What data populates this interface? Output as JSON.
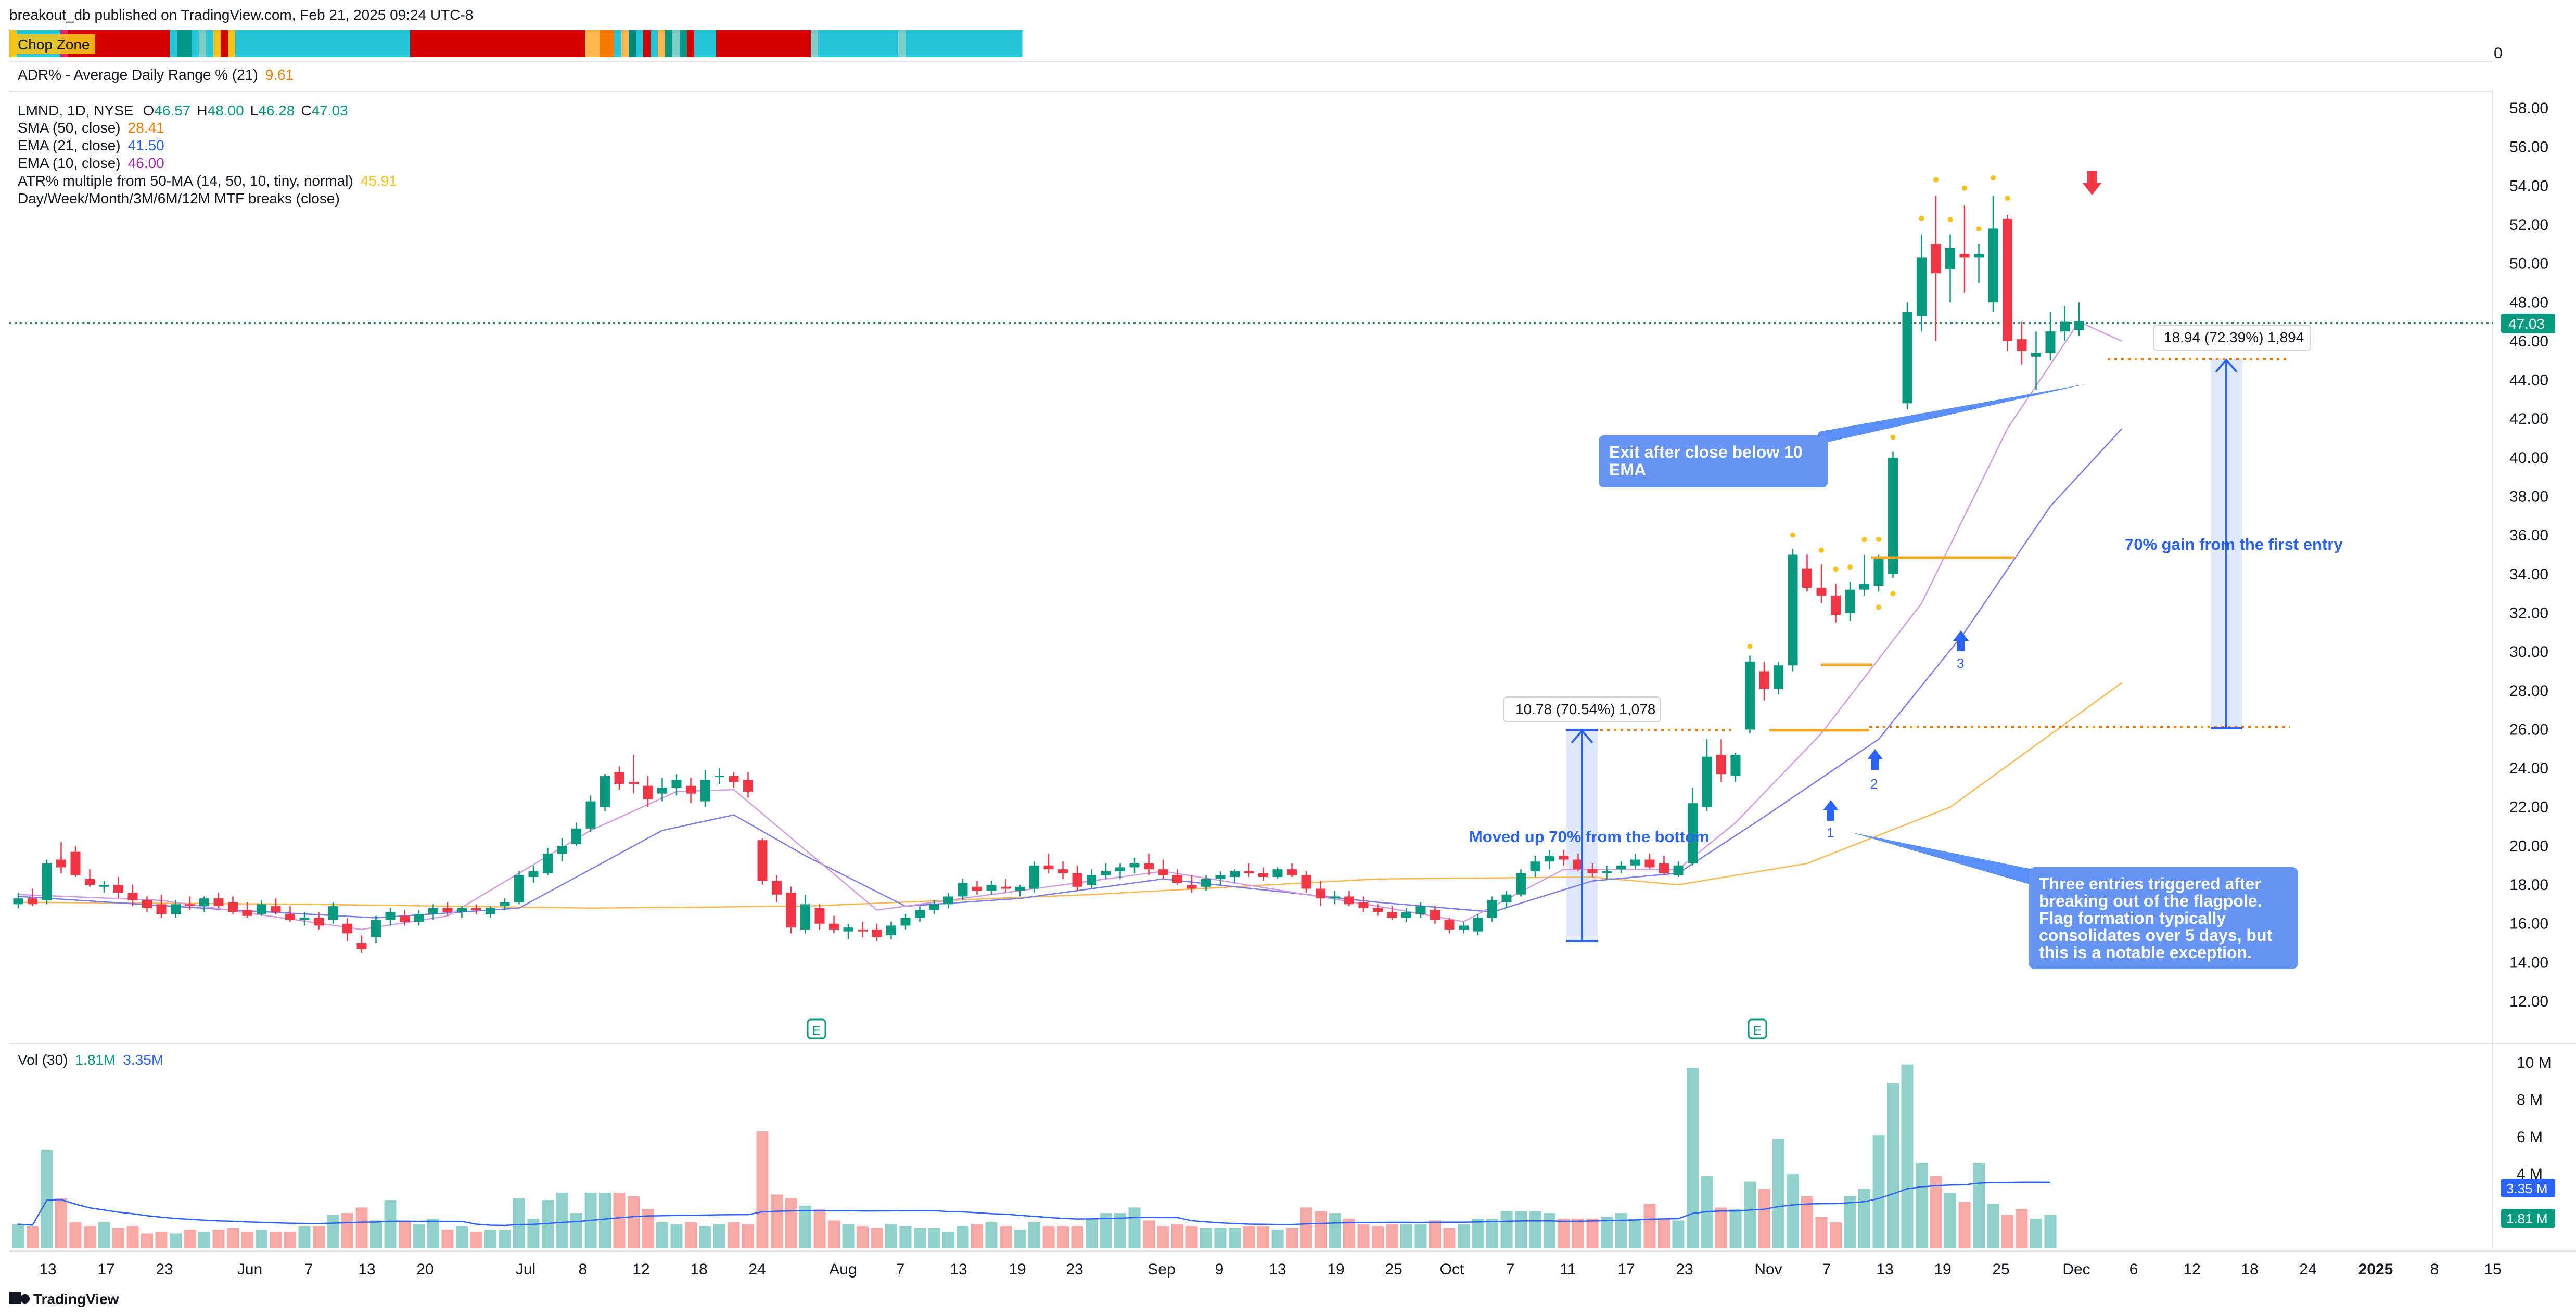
{
  "header": {
    "published": "breakout_db published on TradingView.com, Feb 21, 2025 09:24 UTC-8",
    "footer_brand": "TradingView"
  },
  "chop_zone": {
    "label": "Chop Zone",
    "zero_label": "0",
    "colors": [
      "#f7c31a",
      "#26c6da",
      "#26c6da",
      "#26c6da",
      "#26c6da",
      "#26c6da",
      "#26c6da",
      "#e91e63",
      "#d50000",
      "#d50000",
      "#d50000",
      "#d50000",
      "#d50000",
      "#d50000",
      "#d50000",
      "#d50000",
      "#d50000",
      "#d50000",
      "#d50000",
      "#d50000",
      "#d50000",
      "#d50000",
      "#26c6da",
      "#009688",
      "#009688",
      "#26c6da",
      "#80cbc4",
      "#26c6da",
      "#f7c31a",
      "#d50000",
      "#f7c31a",
      "#26c6da",
      "#26c6da",
      "#26c6da",
      "#26c6da",
      "#26c6da",
      "#26c6da",
      "#26c6da",
      "#26c6da",
      "#26c6da",
      "#26c6da",
      "#26c6da",
      "#26c6da",
      "#26c6da",
      "#26c6da",
      "#26c6da",
      "#26c6da",
      "#26c6da",
      "#26c6da",
      "#26c6da",
      "#26c6da",
      "#26c6da",
      "#26c6da",
      "#26c6da",
      "#26c6da",
      "#d50000",
      "#d50000",
      "#d50000",
      "#d50000",
      "#d50000",
      "#d50000",
      "#d50000",
      "#d50000",
      "#d50000",
      "#d50000",
      "#d50000",
      "#d50000",
      "#d50000",
      "#d50000",
      "#d50000",
      "#d50000",
      "#d50000",
      "#d50000",
      "#d50000",
      "#d50000",
      "#d50000",
      "#d50000",
      "#d50000",
      "#d50000",
      "#ffb74d",
      "#ffb74d",
      "#f57c00",
      "#f57c00",
      "#26c6da",
      "#ffb74d",
      "#00897b",
      "#26c6da",
      "#d50000",
      "#26c6da",
      "#ffb74d",
      "#009688",
      "#80cbc4",
      "#009688",
      "#d50000",
      "#26c6da",
      "#26c6da",
      "#26c6da",
      "#d50000",
      "#d50000",
      "#d50000",
      "#d50000",
      "#d50000",
      "#d50000",
      "#d50000",
      "#d50000",
      "#d50000",
      "#d50000",
      "#d50000",
      "#d50000",
      "#d50000",
      "#80cbc4",
      "#26c6da",
      "#26c6da",
      "#26c6da",
      "#26c6da",
      "#26c6da",
      "#26c6da",
      "#26c6da",
      "#26c6da",
      "#26c6da",
      "#26c6da",
      "#26c6da",
      "#80cbc4",
      "#26c6da",
      "#26c6da",
      "#26c6da",
      "#26c6da",
      "#26c6da",
      "#26c6da",
      "#26c6da",
      "#26c6da",
      "#26c6da",
      "#26c6da",
      "#26c6da",
      "#26c6da",
      "#26c6da",
      "#26c6da",
      "#26c6da",
      "#26c6da"
    ]
  },
  "adr": {
    "label": "ADR% - Average Daily Range % (21)",
    "value": "9.61"
  },
  "legend": {
    "symbol": "LMND, 1D, NYSE",
    "o_label": "O",
    "o_value": "46.57",
    "h_label": "H",
    "h_value": "48.00",
    "l_label": "L",
    "l_value": "46.28",
    "c_label": "C",
    "c_value": "47.03",
    "sma50": "SMA (50, close)",
    "sma50_value": "28.41",
    "ema21": "EMA (21, close)",
    "ema21_value": "41.50",
    "ema10": "EMA (10, close)",
    "ema10_value": "46.00",
    "atr": "ATR% multiple from 50-MA (14, 50, 10, tiny, normal)",
    "atr_value": "45.91",
    "mtf": "Day/Week/Month/3M/6M/12M MTF breaks (close)"
  },
  "volume_legend": {
    "label": "Vol (30)",
    "v1": "1.81M",
    "v2": "3.35M"
  },
  "colors": {
    "up": "#089981",
    "down": "#f23645",
    "vol_up": "#92d2cc",
    "vol_down": "#f7a9a7",
    "sma50": "#ffb74d",
    "ema21": "#5b5bd6",
    "ema10": "#c77ddb",
    "annotation": "#5b8ff9"
  },
  "annotations": {
    "measure1": "10.78 (70.54%) 1,078",
    "measure2": "18.94 (72.39%) 1,894",
    "moved_up": "Moved up 70% from the bottom",
    "gain": "70% gain from the first entry",
    "exit_line1": "Exit after close below 10",
    "exit_line2": "EMA",
    "three_entries": [
      "Three entries triggered after",
      "breaking out of the flagpole.",
      "Flag formation typically",
      "consolidates over 5 days, but",
      "this is a notable exception."
    ],
    "entry_labels": [
      "1",
      "2",
      "3"
    ],
    "earnings_marker": "E",
    "last_price": "47.03",
    "vol_last1": "3.35 M",
    "vol_last2": "1.81 M"
  },
  "chart_data": {
    "type": "candlestick",
    "symbol": "LMND",
    "price_axis": {
      "ticks": [
        "58.00",
        "56.00",
        "54.00",
        "52.00",
        "50.00",
        "48.00",
        "46.00",
        "44.00",
        "42.00",
        "40.00",
        "38.00",
        "36.00",
        "34.00",
        "32.00",
        "30.00",
        "28.00",
        "26.00",
        "24.00",
        "22.00",
        "20.00",
        "18.00",
        "16.00",
        "14.00",
        "12.00"
      ],
      "ylim": [
        10.5,
        59
      ]
    },
    "volume_axis": {
      "ticks": [
        "10 M",
        "8 M",
        "6 M",
        "4 M"
      ],
      "ylim": [
        0,
        11
      ]
    },
    "x_ticks": [
      "13",
      "17",
      "23",
      "Jun",
      "7",
      "13",
      "20",
      "Jul",
      "8",
      "12",
      "18",
      "24",
      "Aug",
      "7",
      "13",
      "19",
      "23",
      "Sep",
      "9",
      "13",
      "19",
      "25",
      "Oct",
      "7",
      "11",
      "17",
      "23",
      "Nov",
      "7",
      "13",
      "19",
      "25",
      "Dec",
      "6",
      "12",
      "18",
      "24",
      "2025",
      "8",
      "15"
    ],
    "candles": [
      [
        17.0,
        17.6,
        16.8,
        17.3
      ],
      [
        17.3,
        17.8,
        16.9,
        17.0
      ],
      [
        17.2,
        19.3,
        17.0,
        19.1
      ],
      [
        19.3,
        20.2,
        18.6,
        18.9
      ],
      [
        19.7,
        20.0,
        18.4,
        18.5
      ],
      [
        18.3,
        18.8,
        17.9,
        18.0
      ],
      [
        17.9,
        18.2,
        17.6,
        18.0
      ],
      [
        18.0,
        18.4,
        17.3,
        17.6
      ],
      [
        17.6,
        18.0,
        16.9,
        17.2
      ],
      [
        17.2,
        17.4,
        16.6,
        16.8
      ],
      [
        17.0,
        17.5,
        16.3,
        16.5
      ],
      [
        16.5,
        17.2,
        16.3,
        17.0
      ],
      [
        17.0,
        17.4,
        16.7,
        16.9
      ],
      [
        16.9,
        17.4,
        16.6,
        17.3
      ],
      [
        17.3,
        17.6,
        16.8,
        16.9
      ],
      [
        17.1,
        17.4,
        16.5,
        16.6
      ],
      [
        16.7,
        17.1,
        16.3,
        16.4
      ],
      [
        16.5,
        17.2,
        16.4,
        17.0
      ],
      [
        16.9,
        17.3,
        16.5,
        16.6
      ],
      [
        16.5,
        16.9,
        16.1,
        16.2
      ],
      [
        16.2,
        16.6,
        15.9,
        16.3
      ],
      [
        16.3,
        16.6,
        15.7,
        15.9
      ],
      [
        16.2,
        17.1,
        16.0,
        16.9
      ],
      [
        16.0,
        16.3,
        15.1,
        15.5
      ],
      [
        15.0,
        15.4,
        14.5,
        14.7
      ],
      [
        15.3,
        16.4,
        15.0,
        16.2
      ],
      [
        16.2,
        16.8,
        15.9,
        16.6
      ],
      [
        16.4,
        16.7,
        15.9,
        16.1
      ],
      [
        16.1,
        16.7,
        15.9,
        16.5
      ],
      [
        16.5,
        17.0,
        16.2,
        16.8
      ],
      [
        16.8,
        17.1,
        16.4,
        16.6
      ],
      [
        16.6,
        16.9,
        16.3,
        16.8
      ],
      [
        16.8,
        17.0,
        16.5,
        16.7
      ],
      [
        16.5,
        16.9,
        16.3,
        16.8
      ],
      [
        16.9,
        17.3,
        16.7,
        17.1
      ],
      [
        17.1,
        18.7,
        17.0,
        18.5
      ],
      [
        18.4,
        19.0,
        18.1,
        18.7
      ],
      [
        18.6,
        19.9,
        18.5,
        19.6
      ],
      [
        19.6,
        20.4,
        19.2,
        20.0
      ],
      [
        20.1,
        21.2,
        20.0,
        20.9
      ],
      [
        20.9,
        22.6,
        20.7,
        22.3
      ],
      [
        22.0,
        23.7,
        21.8,
        23.6
      ],
      [
        23.8,
        24.1,
        22.9,
        23.2
      ],
      [
        23.3,
        24.7,
        22.7,
        23.2
      ],
      [
        23.1,
        23.6,
        22.0,
        22.4
      ],
      [
        22.7,
        23.5,
        22.3,
        23.0
      ],
      [
        23.0,
        23.7,
        22.6,
        23.4
      ],
      [
        23.1,
        23.5,
        22.2,
        22.7
      ],
      [
        22.3,
        23.9,
        22.0,
        23.4
      ],
      [
        23.6,
        24.0,
        23.2,
        23.6
      ],
      [
        23.6,
        23.8,
        23.0,
        23.3
      ],
      [
        23.4,
        23.8,
        22.5,
        22.8
      ],
      [
        20.3,
        20.4,
        18.0,
        18.2
      ],
      [
        18.2,
        18.5,
        17.1,
        17.5
      ],
      [
        17.6,
        17.9,
        15.5,
        15.8
      ],
      [
        15.7,
        17.5,
        15.5,
        17.0
      ],
      [
        16.8,
        17.0,
        15.7,
        16.0
      ],
      [
        16.0,
        16.4,
        15.5,
        15.7
      ],
      [
        15.6,
        16.0,
        15.2,
        15.8
      ],
      [
        15.7,
        16.1,
        15.3,
        15.6
      ],
      [
        15.7,
        16.0,
        15.1,
        15.3
      ],
      [
        15.4,
        16.1,
        15.2,
        15.9
      ],
      [
        15.9,
        16.5,
        15.7,
        16.3
      ],
      [
        16.3,
        16.9,
        16.1,
        16.7
      ],
      [
        16.7,
        17.2,
        16.5,
        17.0
      ],
      [
        17.0,
        17.6,
        16.8,
        17.4
      ],
      [
        17.4,
        18.3,
        17.2,
        18.1
      ],
      [
        17.9,
        18.2,
        17.5,
        17.7
      ],
      [
        17.7,
        18.2,
        17.5,
        18.0
      ],
      [
        17.9,
        18.3,
        17.6,
        17.8
      ],
      [
        17.7,
        18.0,
        17.4,
        17.9
      ],
      [
        17.8,
        19.2,
        17.6,
        19.0
      ],
      [
        19.0,
        19.6,
        18.6,
        18.8
      ],
      [
        18.8,
        19.2,
        18.3,
        18.6
      ],
      [
        18.6,
        19.0,
        17.7,
        17.9
      ],
      [
        18.0,
        18.8,
        17.8,
        18.5
      ],
      [
        18.5,
        19.1,
        18.3,
        18.7
      ],
      [
        18.7,
        19.1,
        18.3,
        18.9
      ],
      [
        18.9,
        19.4,
        18.6,
        19.1
      ],
      [
        19.1,
        19.6,
        18.5,
        18.8
      ],
      [
        18.8,
        19.3,
        18.3,
        18.5
      ],
      [
        18.5,
        18.8,
        18.0,
        18.1
      ],
      [
        18.0,
        18.5,
        17.6,
        17.8
      ],
      [
        17.9,
        18.5,
        17.7,
        18.3
      ],
      [
        18.3,
        18.7,
        18.0,
        18.5
      ],
      [
        18.4,
        18.8,
        18.1,
        18.7
      ],
      [
        18.7,
        19.1,
        18.4,
        18.6
      ],
      [
        18.6,
        18.9,
        18.2,
        18.4
      ],
      [
        18.4,
        18.9,
        18.3,
        18.8
      ],
      [
        18.8,
        19.1,
        18.4,
        18.5
      ],
      [
        18.5,
        18.7,
        17.6,
        17.8
      ],
      [
        17.8,
        18.2,
        16.9,
        17.3
      ],
      [
        17.3,
        17.7,
        17.0,
        17.4
      ],
      [
        17.4,
        17.7,
        16.9,
        17.0
      ],
      [
        17.1,
        17.4,
        16.6,
        16.8
      ],
      [
        16.8,
        17.0,
        16.4,
        16.6
      ],
      [
        16.6,
        16.9,
        16.2,
        16.3
      ],
      [
        16.3,
        16.8,
        16.1,
        16.6
      ],
      [
        16.5,
        17.1,
        16.3,
        16.9
      ],
      [
        16.7,
        16.9,
        16.0,
        16.2
      ],
      [
        16.2,
        16.3,
        15.5,
        15.7
      ],
      [
        15.7,
        16.1,
        15.5,
        15.9
      ],
      [
        15.6,
        16.5,
        15.4,
        16.3
      ],
      [
        16.3,
        17.4,
        16.1,
        17.2
      ],
      [
        17.1,
        17.7,
        16.8,
        17.5
      ],
      [
        17.5,
        18.8,
        17.4,
        18.6
      ],
      [
        18.7,
        19.5,
        18.4,
        19.2
      ],
      [
        19.2,
        19.8,
        18.8,
        19.5
      ],
      [
        19.5,
        19.8,
        19.0,
        19.3
      ],
      [
        19.3,
        19.6,
        18.7,
        18.8
      ],
      [
        18.8,
        19.1,
        18.4,
        18.6
      ],
      [
        18.6,
        19.0,
        18.3,
        18.7
      ],
      [
        18.8,
        19.2,
        18.6,
        19.0
      ],
      [
        19.0,
        19.6,
        18.8,
        19.3
      ],
      [
        19.3,
        19.6,
        18.8,
        18.9
      ],
      [
        19.1,
        19.5,
        18.5,
        18.6
      ],
      [
        18.5,
        19.2,
        18.4,
        19.0
      ],
      [
        19.1,
        23.0,
        19.0,
        22.2
      ],
      [
        22.0,
        25.5,
        21.8,
        24.6
      ],
      [
        24.7,
        25.5,
        23.3,
        23.7
      ],
      [
        23.6,
        24.8,
        23.3,
        24.7
      ],
      [
        26.0,
        29.8,
        25.8,
        29.5
      ],
      [
        29.0,
        29.5,
        27.5,
        28.1
      ],
      [
        28.1,
        29.5,
        27.8,
        29.3
      ],
      [
        29.3,
        35.3,
        29.0,
        35.0
      ],
      [
        34.3,
        35.0,
        33.1,
        33.3
      ],
      [
        33.3,
        34.5,
        32.5,
        32.9
      ],
      [
        32.9,
        33.5,
        31.5,
        31.9
      ],
      [
        32.0,
        33.6,
        31.6,
        33.2
      ],
      [
        33.2,
        35.0,
        32.9,
        33.5
      ],
      [
        33.4,
        35.0,
        33.1,
        34.8
      ],
      [
        34.0,
        40.3,
        33.8,
        40.0
      ],
      [
        42.8,
        48.0,
        42.5,
        47.5
      ],
      [
        47.3,
        51.5,
        46.5,
        50.3
      ],
      [
        51.0,
        53.5,
        46.0,
        49.5
      ],
      [
        49.7,
        51.5,
        48.0,
        50.8
      ],
      [
        50.5,
        53.0,
        48.5,
        50.3
      ],
      [
        50.3,
        51.0,
        49.0,
        50.5
      ],
      [
        48.0,
        53.5,
        47.5,
        51.8
      ],
      [
        52.3,
        52.5,
        45.5,
        46.0
      ],
      [
        46.1,
        47.0,
        44.8,
        45.5
      ],
      [
        45.2,
        46.5,
        43.5,
        45.4
      ],
      [
        45.4,
        47.5,
        45.0,
        46.5
      ],
      [
        46.5,
        47.8,
        46.0,
        47.0
      ],
      [
        46.57,
        48.0,
        46.28,
        47.03
      ]
    ],
    "volumes_m": [
      1.3,
      1.2,
      5.3,
      2.7,
      1.4,
      1.2,
      1.4,
      1.1,
      1.2,
      0.8,
      0.9,
      0.8,
      1.0,
      0.9,
      1.0,
      1.1,
      0.9,
      1.0,
      0.9,
      0.9,
      1.2,
      1.2,
      1.8,
      1.9,
      2.2,
      1.5,
      2.6,
      1.5,
      1.3,
      1.6,
      1.0,
      1.2,
      0.9,
      1.0,
      1.0,
      2.7,
      1.6,
      2.6,
      3.0,
      1.9,
      3.0,
      3.0,
      3.0,
      2.8,
      2.1,
      1.4,
      1.3,
      1.4,
      1.2,
      1.3,
      1.4,
      1.3,
      6.3,
      2.9,
      2.7,
      2.3,
      2.1,
      1.5,
      1.3,
      1.2,
      1.1,
      1.3,
      1.2,
      1.1,
      1.1,
      0.9,
      1.2,
      1.3,
      1.4,
      1.2,
      1.0,
      1.4,
      1.2,
      1.2,
      1.2,
      1.6,
      1.9,
      1.9,
      2.2,
      1.5,
      1.2,
      1.3,
      1.2,
      1.1,
      1.1,
      1.1,
      1.2,
      1.2,
      1.0,
      1.1,
      2.2,
      2.0,
      1.9,
      1.6,
      1.3,
      1.2,
      1.3,
      1.3,
      1.3,
      1.5,
      1.1,
      1.3,
      1.6,
      1.6,
      2.0,
      2.0,
      2.0,
      1.9,
      1.6,
      1.6,
      1.6,
      1.7,
      1.9,
      1.6,
      2.4,
      1.6,
      1.5,
      9.7,
      3.9,
      2.2,
      2.1,
      3.6,
      3.2,
      5.9,
      4.0,
      2.8,
      1.7,
      1.4,
      2.8,
      3.2,
      6.1,
      8.9,
      9.9,
      4.6,
      3.9,
      3.0,
      2.5,
      4.6,
      2.4,
      1.8,
      2.1,
      1.6,
      1.81
    ],
    "sma50": [
      [
        0,
        17.1
      ],
      [
        20,
        17.0
      ],
      [
        40,
        16.8
      ],
      [
        55,
        16.9
      ],
      [
        75,
        17.5
      ],
      [
        95,
        18.3
      ],
      [
        110,
        18.4
      ],
      [
        116,
        18.0
      ],
      [
        125,
        19.1
      ],
      [
        135,
        22.0
      ],
      [
        147,
        28.41
      ]
    ],
    "ema21": [
      [
        0,
        17.4
      ],
      [
        15,
        16.7
      ],
      [
        25,
        16.3
      ],
      [
        35,
        16.8
      ],
      [
        45,
        20.8
      ],
      [
        50,
        21.6
      ],
      [
        55,
        19.5
      ],
      [
        62,
        16.9
      ],
      [
        70,
        17.3
      ],
      [
        80,
        18.3
      ],
      [
        95,
        17.1
      ],
      [
        103,
        16.6
      ],
      [
        110,
        18.2
      ],
      [
        116,
        18.6
      ],
      [
        122,
        21.5
      ],
      [
        130,
        25.5
      ],
      [
        136,
        31.0
      ],
      [
        142,
        37.5
      ],
      [
        147,
        41.5
      ]
    ],
    "ema10": [
      [
        0,
        17.5
      ],
      [
        10,
        17.2
      ],
      [
        24,
        15.7
      ],
      [
        30,
        16.4
      ],
      [
        40,
        20.8
      ],
      [
        46,
        22.8
      ],
      [
        50,
        22.9
      ],
      [
        55,
        19.8
      ],
      [
        60,
        16.7
      ],
      [
        70,
        17.7
      ],
      [
        80,
        18.7
      ],
      [
        95,
        16.9
      ],
      [
        101,
        16.1
      ],
      [
        108,
        18.8
      ],
      [
        116,
        18.8
      ],
      [
        120,
        21.2
      ],
      [
        126,
        25.8
      ],
      [
        133,
        32.5
      ],
      [
        139,
        41.5
      ],
      [
        144,
        47.0
      ],
      [
        147,
        46.0
      ]
    ],
    "entries": [
      1,
      2,
      3
    ]
  }
}
